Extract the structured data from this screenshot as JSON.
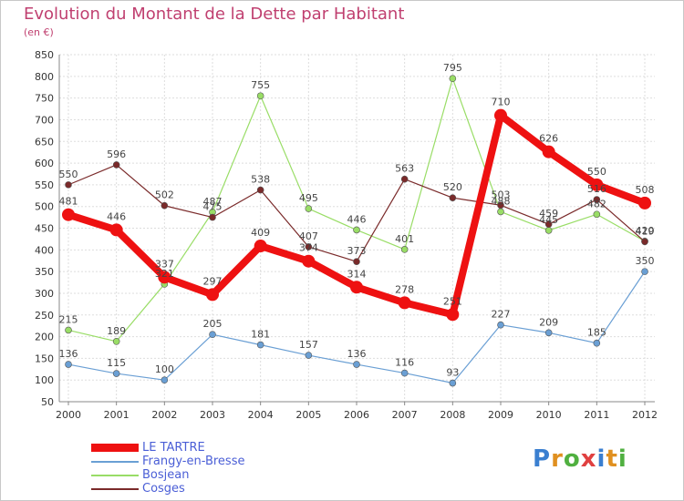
{
  "title": "Evolution du Montant de la Dette par Habitant",
  "unit": "(en €)",
  "logo": "Proxiti",
  "colors": {
    "le_tartre": "#ee1111",
    "frangy": "#6a9fd4",
    "bosjean": "#99dd66",
    "cosges": "#7a2a2a"
  },
  "chart_data": {
    "type": "line",
    "x": [
      2000,
      2001,
      2002,
      2003,
      2004,
      2005,
      2006,
      2007,
      2008,
      2009,
      2010,
      2011,
      2012
    ],
    "ylim": [
      50,
      850
    ],
    "yticks": [
      50,
      100,
      150,
      200,
      250,
      300,
      350,
      400,
      450,
      500,
      550,
      600,
      650,
      700,
      750,
      800,
      850
    ],
    "grid": true,
    "legend_position": "bottom-left",
    "series": [
      {
        "name": "LE TARTRE",
        "values": [
          481,
          446,
          337,
          297,
          409,
          374,
          314,
          278,
          251,
          710,
          626,
          550,
          508
        ]
      },
      {
        "name": "Frangy-en-Bresse",
        "values": [
          136,
          115,
          100,
          205,
          181,
          157,
          136,
          116,
          93,
          227,
          209,
          185,
          350
        ]
      },
      {
        "name": "Bosjean",
        "values": [
          215,
          189,
          321,
          487,
          755,
          495,
          446,
          401,
          795,
          488,
          445,
          482,
          420
        ]
      },
      {
        "name": "Cosges",
        "values": [
          550,
          596,
          502,
          475,
          538,
          407,
          373,
          563,
          520,
          503,
          459,
          516,
          419
        ]
      }
    ],
    "data_labels": [
      {
        "series": 0,
        "labels": [
          "481",
          "446",
          "337",
          "297",
          "409",
          "374",
          "314",
          "278",
          "251",
          "710",
          "626",
          "550",
          "508"
        ]
      },
      {
        "series": 1,
        "labels": [
          "136",
          "115",
          "100",
          "205",
          "181",
          "157",
          "136",
          "116",
          "93",
          "227",
          "209",
          "185",
          "350"
        ]
      },
      {
        "series": 2,
        "labels": [
          "215",
          "189",
          "321",
          "487",
          "755",
          "495",
          "446",
          "401",
          "795",
          "488",
          "445",
          "482",
          "420"
        ]
      },
      {
        "series": 3,
        "labels": [
          "550",
          "596",
          "502",
          "475",
          "538",
          "407",
          "373",
          "563",
          "520",
          "503",
          "459",
          "516",
          "419"
        ]
      }
    ]
  },
  "legend": [
    {
      "label": "LE TARTRE"
    },
    {
      "label": "Frangy-en-Bresse"
    },
    {
      "label": "Bosjean"
    },
    {
      "label": "Cosges"
    }
  ]
}
